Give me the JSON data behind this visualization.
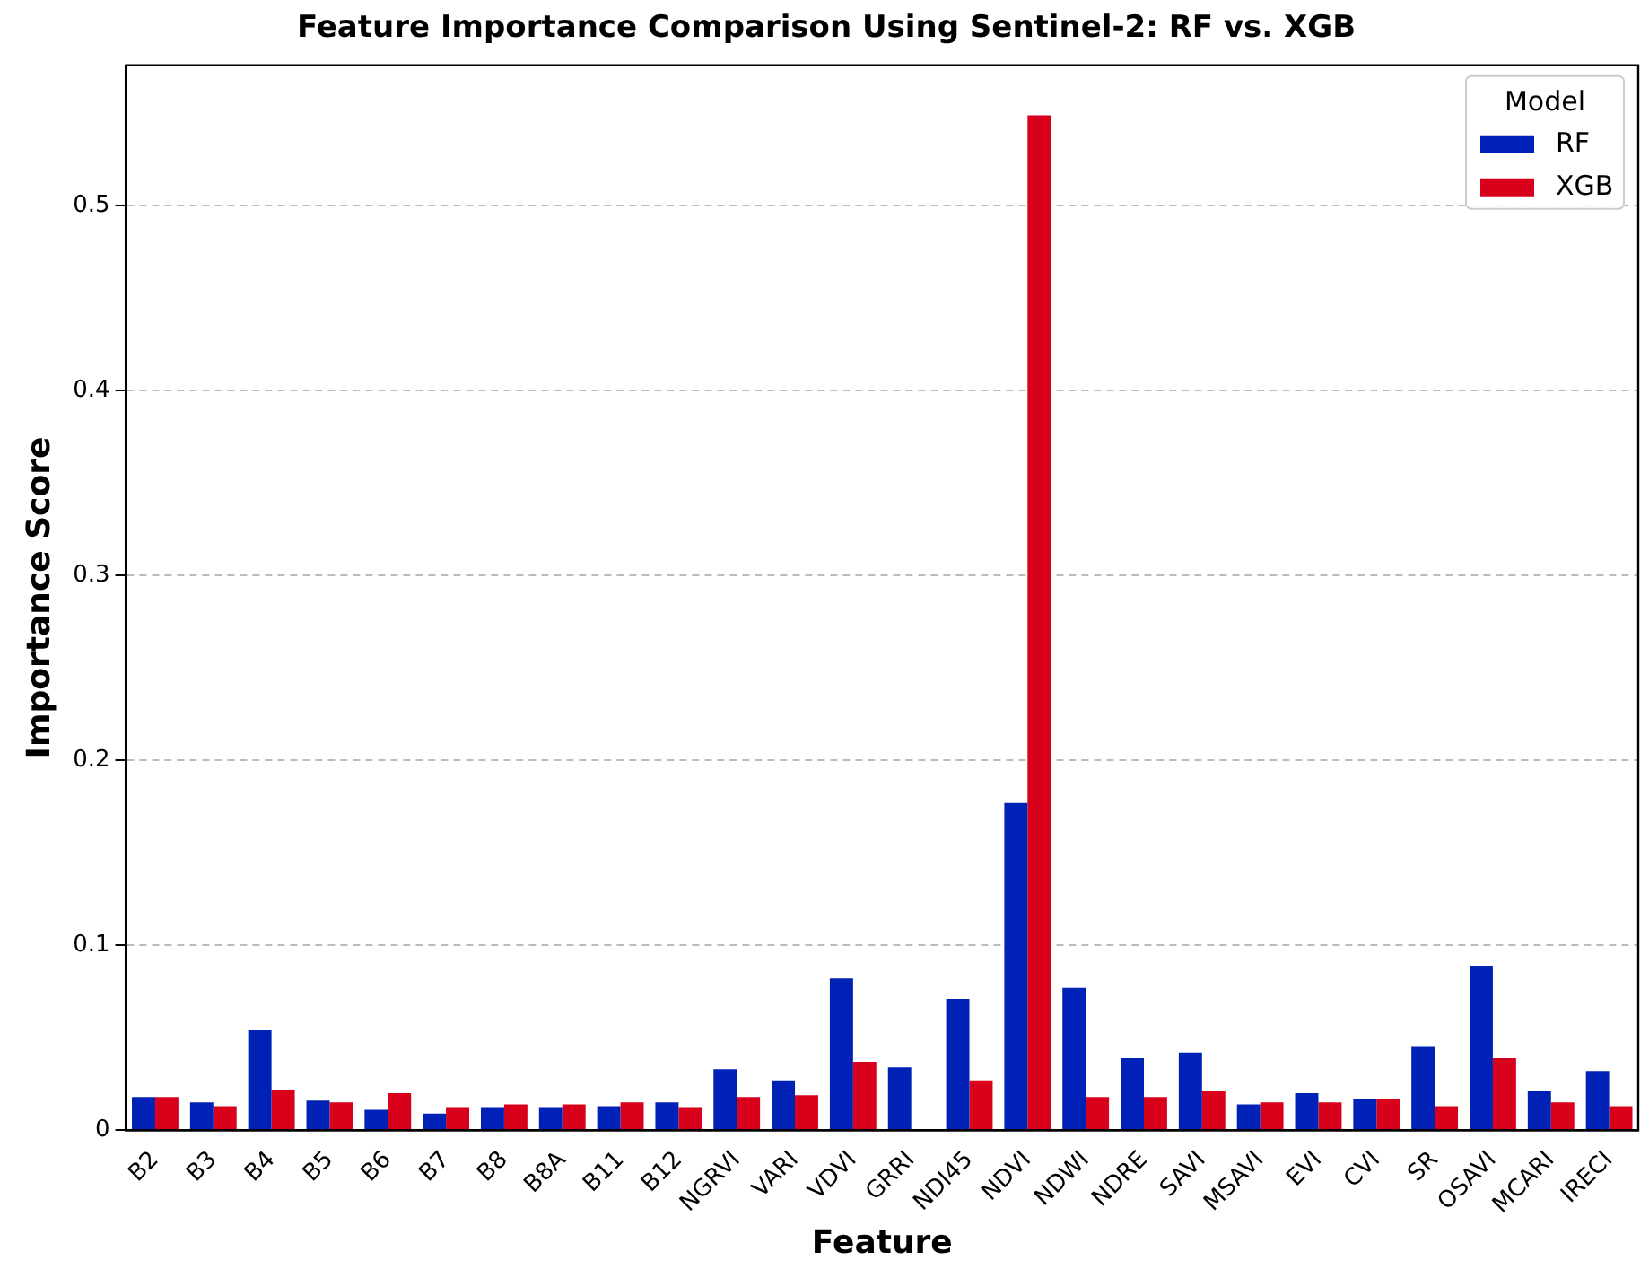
{
  "chart_data": {
    "type": "bar",
    "title": "Feature Importance Comparison Using Sentinel-2: RF vs. XGB",
    "xlabel": "Feature",
    "ylabel": "Importance Score",
    "legend_title": "Model",
    "categories": [
      "B2",
      "B3",
      "B4",
      "B5",
      "B6",
      "B7",
      "B8",
      "B8A",
      "B11",
      "B12",
      "NGRVI",
      "VARI",
      "VDVI",
      "GRRI",
      "NDI45",
      "NDVI",
      "NDWI",
      "NDRE",
      "SAVI",
      "MSAVI",
      "EVI",
      "CVI",
      "SR",
      "OSAVI",
      "MCARI",
      "IRECI"
    ],
    "series": [
      {
        "name": "RF",
        "color": "#0021b5",
        "values": [
          0.018,
          0.015,
          0.054,
          0.016,
          0.011,
          0.009,
          0.012,
          0.012,
          0.013,
          0.015,
          0.033,
          0.027,
          0.082,
          0.034,
          0.071,
          0.177,
          0.077,
          0.039,
          0.042,
          0.014,
          0.02,
          0.017,
          0.045,
          0.089,
          0.021,
          0.032
        ]
      },
      {
        "name": "XGB",
        "color": "#d9001b",
        "values": [
          0.018,
          0.013,
          0.022,
          0.015,
          0.02,
          0.012,
          0.014,
          0.014,
          0.015,
          0.012,
          0.018,
          0.019,
          0.037,
          0,
          0.027,
          0.549,
          0.018,
          0.018,
          0.021,
          0.015,
          0.015,
          0.017,
          0.013,
          0.039,
          0.015,
          0.013
        ]
      }
    ],
    "ylim": [
      0,
      0.576
    ],
    "yticks": [
      0,
      0.1,
      0.2,
      0.3,
      0.4,
      0.5
    ],
    "grid": "y",
    "legend": "top right"
  }
}
